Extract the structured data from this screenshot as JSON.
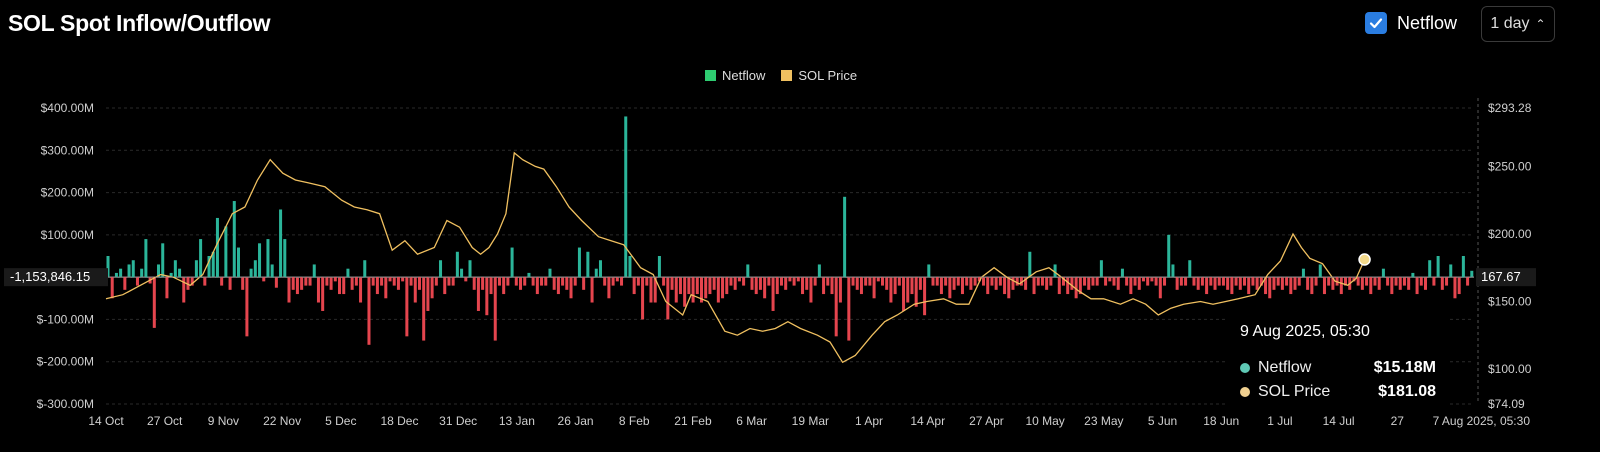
{
  "header": {
    "title": "SOL Spot Inflow/Outflow",
    "netflow_toggle_label": "Netflow",
    "interval_label": "1 day",
    "interval_chevron": "⌃"
  },
  "tooltip": {
    "date": "9 Aug 2025, 05:30",
    "rows": [
      {
        "label": "Netflow",
        "value": "$15.18M"
      },
      {
        "label": "SOL Price",
        "value": "$181.08"
      }
    ]
  },
  "crosshair": {
    "left_value": "-1,153,846.15",
    "right_value": "167.67"
  },
  "colors": {
    "inflow": "#2bb59a",
    "outflow": "#e5454e",
    "price": "#f0c060",
    "legend_netflow": "#2ecc71",
    "legend_price": "#f0c060",
    "checkbox": "#2a7de1"
  },
  "chart_data": {
    "type": "bar",
    "title": "SOL Spot Inflow/Outflow",
    "legend": [
      "Netflow",
      "SOL Price"
    ],
    "legend_position": "top-center",
    "x_tick_labels": [
      "14 Oct",
      "27 Oct",
      "9 Nov",
      "22 Nov",
      "5 Dec",
      "18 Dec",
      "31 Dec",
      "13 Jan",
      "26 Jan",
      "8 Feb",
      "21 Feb",
      "6 Mar",
      "19 Mar",
      "1 Apr",
      "14 Apr",
      "27 Apr",
      "10 May",
      "23 May",
      "5 Jun",
      "18 Jun",
      "1 Jul",
      "14 Jul",
      "27",
      "7 Aug 2025, 05:30"
    ],
    "y_left": {
      "label": "Netflow",
      "ticks": [
        "$400.00M",
        "$300.00M",
        "$200.00M",
        "$100.00M",
        "$-100.00M",
        "$-200.00M",
        "$-300.00M"
      ],
      "tick_values": [
        400,
        300,
        200,
        100,
        -100,
        -200,
        -300
      ],
      "range": [
        -300,
        400
      ],
      "unit": "USD millions"
    },
    "y_right": {
      "label": "SOL Price",
      "ticks": [
        "$293.28",
        "$250.00",
        "$200.00",
        "$150.00",
        "$100.00",
        "$74.09"
      ],
      "tick_values": [
        293.28,
        250,
        200,
        150,
        100,
        74.09
      ],
      "range": [
        74.09,
        293.28
      ],
      "unit": "USD"
    },
    "netflow_series": {
      "name": "Netflow",
      "dates_start": "2024-10-14",
      "step_days": 1,
      "values": [
        50,
        -50,
        10,
        20,
        -30,
        30,
        40,
        -20,
        20,
        90,
        -15,
        -120,
        30,
        80,
        -50,
        10,
        40,
        20,
        -60,
        -30,
        -20,
        40,
        90,
        -20,
        50,
        60,
        140,
        -20,
        120,
        -30,
        180,
        70,
        -30,
        -140,
        20,
        40,
        80,
        -10,
        90,
        30,
        -25,
        160,
        90,
        -60,
        -30,
        -40,
        -30,
        -20,
        -20,
        30,
        -60,
        -80,
        -20,
        -30,
        -10,
        -40,
        -40,
        20,
        -30,
        -20,
        -60,
        40,
        -160,
        -20,
        -40,
        -20,
        -50,
        -10,
        -20,
        -30,
        -10,
        -140,
        -20,
        -60,
        -30,
        -150,
        -80,
        -50,
        -20,
        40,
        -40,
        -20,
        -20,
        60,
        20,
        -10,
        40,
        -30,
        -80,
        -30,
        -90,
        -40,
        -150,
        -20,
        -40,
        -20,
        70,
        -20,
        -30,
        -20,
        10,
        -20,
        -40,
        -20,
        -20,
        20,
        -30,
        -40,
        -20,
        -30,
        -50,
        -20,
        70,
        -30,
        60,
        -60,
        20,
        40,
        -20,
        -50,
        -20,
        -10,
        -20,
        380,
        50,
        -40,
        -20,
        -100,
        -20,
        -60,
        -60,
        50,
        -20,
        -100,
        -30,
        -60,
        -40,
        -70,
        -40,
        -60,
        -40,
        -60,
        -50,
        -40,
        -30,
        -60,
        -50,
        -40,
        -20,
        -30,
        -10,
        -20,
        30,
        -30,
        -40,
        -30,
        -50,
        -20,
        -80,
        -40,
        -20,
        -30,
        -10,
        -20,
        -10,
        -40,
        -30,
        -60,
        -20,
        30,
        -40,
        -20,
        -40,
        -140,
        -60,
        190,
        -150,
        -20,
        -30,
        -40,
        -20,
        -20,
        -50,
        -10,
        -20,
        -30,
        -60,
        -40,
        -20,
        -80,
        -60,
        -40,
        -70,
        -30,
        -90,
        30,
        -20,
        -20,
        -40,
        -20,
        -50,
        -30,
        -20,
        -40,
        -20,
        -30,
        -20,
        -10,
        -20,
        -40,
        -20,
        -30,
        -20,
        -40,
        -50,
        -30,
        -20,
        -20,
        -30,
        60,
        -40,
        -20,
        -20,
        -30,
        -20,
        30,
        -40,
        -20,
        -40,
        -30,
        -50,
        -40,
        -20,
        -30,
        -20,
        -20,
        40,
        -20,
        -10,
        -20,
        -30,
        20,
        -20,
        -40,
        -20,
        -30,
        -10,
        -20,
        -10,
        -20,
        -50,
        -20,
        100,
        30,
        -30,
        -20,
        -20,
        40,
        -20,
        -30,
        -20,
        -40,
        -20,
        -30,
        -20,
        -20,
        -30,
        -40,
        -20,
        -30,
        -20,
        -40,
        -20,
        -30,
        -20,
        -40,
        -50,
        -30,
        -20,
        -30,
        -20,
        -40,
        -30,
        -20,
        20,
        -30,
        -40,
        -20,
        30,
        -40,
        -20,
        -30,
        -20,
        -40,
        -20,
        -30,
        -10,
        -20,
        -30,
        -20,
        -40,
        -20,
        -30,
        20,
        -20,
        -40,
        -20,
        -30,
        -20,
        -30,
        10,
        -40,
        -20,
        -30,
        40,
        -20,
        50,
        -30,
        -20,
        30,
        -50,
        -40,
        50,
        -20,
        15
      ]
    },
    "price_series": {
      "name": "SOL Price",
      "points": [
        [
          "14 Oct",
          152
        ],
        [
          "18 Oct",
          155
        ],
        [
          "24 Oct",
          165
        ],
        [
          "27 Oct",
          170
        ],
        [
          "30 Oct",
          168
        ],
        [
          "3 Nov",
          162
        ],
        [
          "6 Nov",
          170
        ],
        [
          "9 Nov",
          190
        ],
        [
          "13 Nov",
          215
        ],
        [
          "16 Nov",
          220
        ],
        [
          "19 Nov",
          240
        ],
        [
          "22 Nov",
          255
        ],
        [
          "25 Nov",
          245
        ],
        [
          "28 Nov",
          240
        ],
        [
          "1 Dec",
          238
        ],
        [
          "5 Dec",
          235
        ],
        [
          "9 Dec",
          225
        ],
        [
          "12 Dec",
          220
        ],
        [
          "15 Dec",
          218
        ],
        [
          "18 Dec",
          215
        ],
        [
          "21 Dec",
          188
        ],
        [
          "24 Dec",
          195
        ],
        [
          "27 Dec",
          185
        ],
        [
          "31 Dec",
          190
        ],
        [
          "3 Jan",
          210
        ],
        [
          "6 Jan",
          205
        ],
        [
          "9 Jan",
          190
        ],
        [
          "11 Jan",
          185
        ],
        [
          "13 Jan",
          190
        ],
        [
          "15 Jan",
          200
        ],
        [
          "17 Jan",
          215
        ],
        [
          "19 Jan",
          260
        ],
        [
          "21 Jan",
          255
        ],
        [
          "24 Jan",
          250
        ],
        [
          "26 Jan",
          248
        ],
        [
          "29 Jan",
          235
        ],
        [
          "1 Feb",
          220
        ],
        [
          "4 Feb",
          210
        ],
        [
          "8 Feb",
          198
        ],
        [
          "11 Feb",
          195
        ],
        [
          "14 Feb",
          192
        ],
        [
          "18 Feb",
          175
        ],
        [
          "21 Feb",
          170
        ],
        [
          "24 Feb",
          150
        ],
        [
          "28 Feb",
          140
        ],
        [
          "2 Mar",
          155
        ],
        [
          "6 Mar",
          150
        ],
        [
          "10 Mar",
          128
        ],
        [
          "13 Mar",
          125
        ],
        [
          "16 Mar",
          130
        ],
        [
          "19 Mar",
          128
        ],
        [
          "22 Mar",
          130
        ],
        [
          "25 Mar",
          135
        ],
        [
          "28 Mar",
          130
        ],
        [
          "1 Apr",
          125
        ],
        [
          "4 Apr",
          120
        ],
        [
          "7 Apr",
          105
        ],
        [
          "10 Apr",
          110
        ],
        [
          "14 Apr",
          125
        ],
        [
          "17 Apr",
          135
        ],
        [
          "20 Apr",
          140
        ],
        [
          "24 Apr",
          148
        ],
        [
          "27 Apr",
          150
        ],
        [
          "1 May",
          152
        ],
        [
          "4 May",
          148
        ],
        [
          "7 May",
          148
        ],
        [
          "10 May",
          168
        ],
        [
          "13 May",
          175
        ],
        [
          "16 May",
          168
        ],
        [
          "19 May",
          163
        ],
        [
          "23 May",
          172
        ],
        [
          "26 May",
          175
        ],
        [
          "29 May",
          168
        ],
        [
          "2 Jun",
          158
        ],
        [
          "5 Jun",
          152
        ],
        [
          "8 Jun",
          152
        ],
        [
          "12 Jun",
          148
        ],
        [
          "15 Jun",
          152
        ],
        [
          "18 Jun",
          148
        ],
        [
          "21 Jun",
          140
        ],
        [
          "24 Jun",
          145
        ],
        [
          "27 Jun",
          148
        ],
        [
          "1 Jul",
          150
        ],
        [
          "4 Jul",
          148
        ],
        [
          "7 Jul",
          150
        ],
        [
          "10 Jul",
          152
        ],
        [
          "14 Jul",
          155
        ],
        [
          "17 Jul",
          170
        ],
        [
          "20 Jul",
          180
        ],
        [
          "23 Jul",
          200
        ],
        [
          "25 Jul",
          190
        ],
        [
          "27 Jul",
          182
        ],
        [
          "30 Jul",
          178
        ],
        [
          "2 Aug",
          165
        ],
        [
          "5 Aug",
          162
        ],
        [
          "7 Aug",
          167
        ],
        [
          "9 Aug",
          181.08
        ]
      ]
    },
    "highlight": {
      "date": "9 Aug 2025, 05:30",
      "netflow_musd": 15.18,
      "sol_price": 181.08
    },
    "grid": "horizontal dashed"
  }
}
